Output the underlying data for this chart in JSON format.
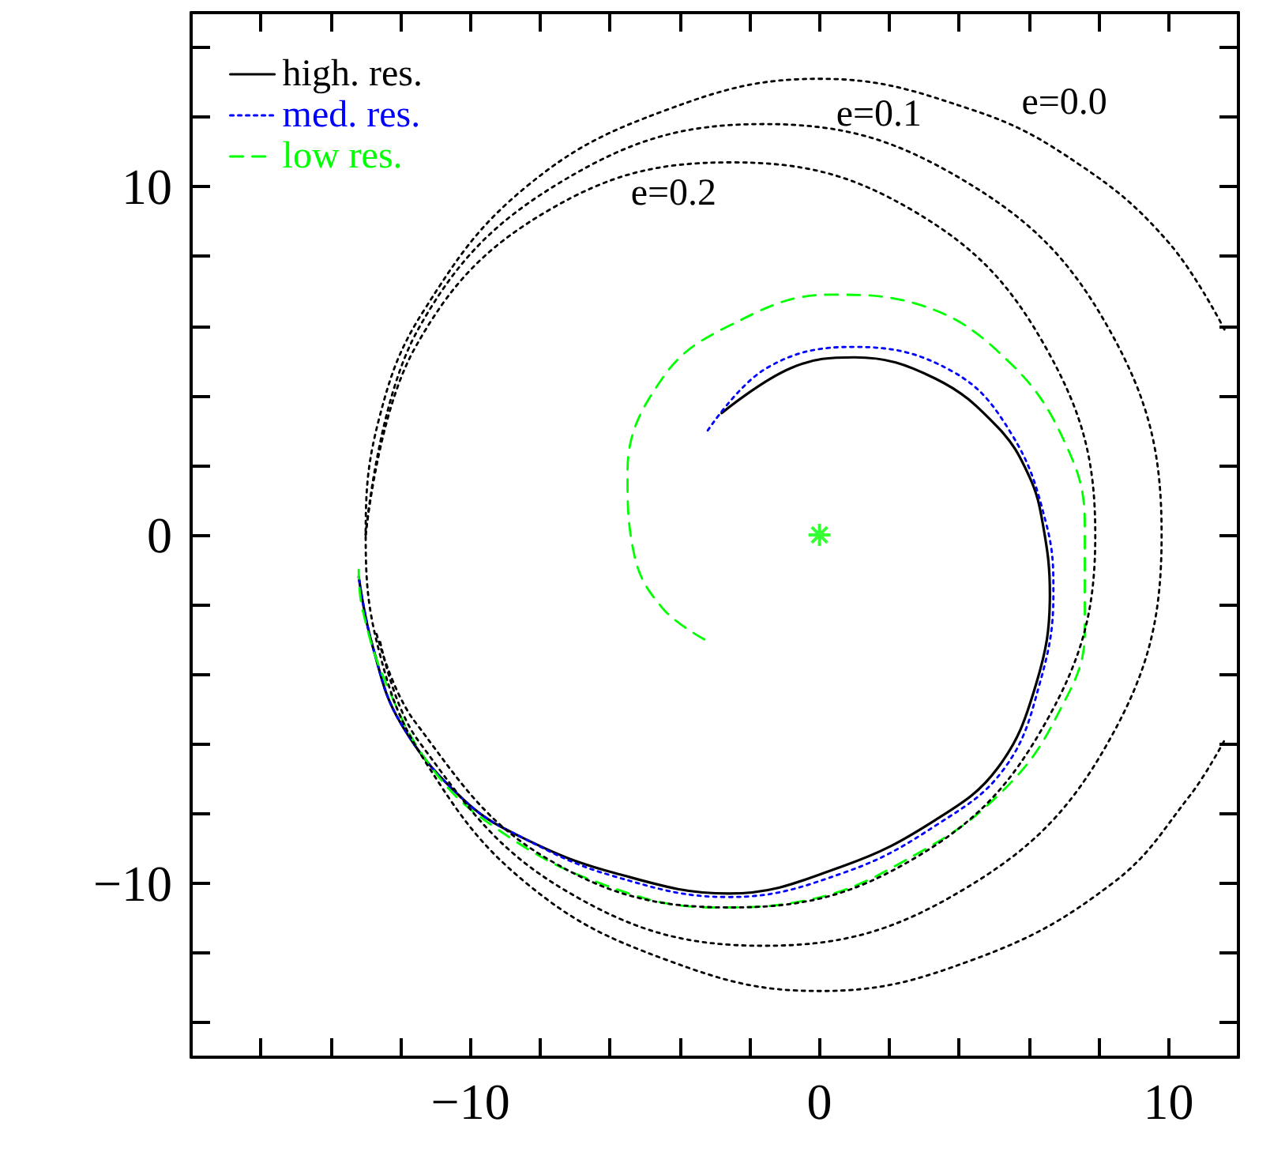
{
  "chart_data": {
    "type": "line",
    "xlim": [
      -18,
      12
    ],
    "ylim": [
      -15,
      15
    ],
    "xticks": [
      {
        "value": -16,
        "label": null
      },
      {
        "value": -14,
        "label": null
      },
      {
        "value": -12,
        "label": null
      },
      {
        "value": -10,
        "label": "−10"
      },
      {
        "value": -8,
        "label": null
      },
      {
        "value": -6,
        "label": null
      },
      {
        "value": -4,
        "label": null
      },
      {
        "value": -2,
        "label": null
      },
      0,
      {
        "value": 2,
        "label": null
      },
      {
        "value": 4,
        "label": null
      },
      {
        "value": 6,
        "label": null
      },
      {
        "value": 8,
        "label": null
      },
      10
    ],
    "yticks": [
      {
        "value": -14,
        "label": null
      },
      {
        "value": -12,
        "label": null
      },
      {
        "value": -10,
        "label": "−10"
      },
      {
        "value": -8,
        "label": null
      },
      {
        "value": -6,
        "label": null
      },
      {
        "value": -4,
        "label": null
      },
      {
        "value": -2,
        "label": null
      },
      0,
      {
        "value": 2,
        "label": null
      },
      {
        "value": 4,
        "label": null
      },
      {
        "value": 6,
        "label": null
      },
      {
        "value": 8,
        "label": null
      },
      10,
      {
        "value": 12,
        "label": null
      },
      {
        "value": 14,
        "label": null
      }
    ],
    "grid": false,
    "legend": "top left",
    "marker": "none",
    "series": [
      {
        "name": "high. res.",
        "color": "#000000",
        "line_style": "solid",
        "x": [
          -2.8,
          -0.8,
          1.0,
          3.3,
          5.1,
          6.0,
          6.4,
          6.6,
          6.2,
          5.1,
          3.3,
          0.7,
          -2.6,
          -5.9,
          -8.5,
          -10.2,
          -12.0,
          -12.8,
          -13.2
        ],
        "values": [
          3.5,
          4.8,
          5.1,
          4.5,
          3.1,
          1.7,
          0.3,
          -1.7,
          -4.3,
          -6.7,
          -8.2,
          -9.5,
          -10.3,
          -9.7,
          -8.7,
          -7.6,
          -5.4,
          -3.2,
          -1.2
        ]
      },
      {
        "name": "med. res.",
        "color": "#0000ff",
        "line_style": "dotted",
        "x": [
          -3.2,
          -1.5,
          1.0,
          3.8,
          5.5,
          6.5,
          6.7,
          6.3,
          5.3,
          3.4,
          0.7,
          -2.6,
          -5.9,
          -8.5,
          -10.2,
          -12.0,
          -12.8,
          -13.2
        ],
        "values": [
          3.0,
          4.8,
          5.4,
          4.7,
          2.9,
          0.3,
          -1.7,
          -4.3,
          -6.7,
          -8.3,
          -9.7,
          -10.4,
          -9.8,
          -8.7,
          -7.6,
          -5.4,
          -3.2,
          -1.2
        ]
      },
      {
        "name": "low res.",
        "color": "#00ff00",
        "line_style": "dashed",
        "x": [
          -3.3,
          -4.5,
          -5.3,
          -5.5,
          -4.5,
          -2.6,
          0.3,
          2.9,
          5.5,
          7.1,
          7.6,
          7.6,
          6.8,
          5.3,
          2.9,
          -0.4,
          -3.0,
          -6.3,
          -9.3,
          -11.1,
          -12.4,
          -13.1,
          -13.2
        ],
        "values": [
          -3.0,
          -2.1,
          -0.6,
          1.8,
          4.5,
          6.0,
          6.9,
          6.6,
          4.9,
          2.5,
          0.3,
          -2.8,
          -5.2,
          -7.3,
          -9.1,
          -10.5,
          -10.7,
          -10.0,
          -8.4,
          -6.7,
          -4.3,
          -2.1,
          -1.0
        ]
      },
      {
        "name": "e=0.0",
        "color": "#000000",
        "line_style": "dotted",
        "x": [
          11.6,
          10.0,
          7.5,
          4.4,
          0,
          -4.4,
          -8.4,
          -11.3,
          -12.6,
          -13.0,
          -12.6,
          -11.3,
          -8.4,
          -4.4,
          0,
          4.4,
          8.4,
          10.6,
          11.6
        ],
        "values": [
          5.9,
          8.4,
          10.6,
          12.2,
          13.1,
          12.2,
          10.0,
          6.5,
          3.4,
          0,
          -3.4,
          -6.5,
          -10.0,
          -12.2,
          -13.1,
          -12.2,
          -10.0,
          -7.5,
          -5.9
        ]
      },
      {
        "name": "e=0.1",
        "color": "#000000",
        "line_style": "dotted",
        "x": [
          -13.0,
          -11.5,
          -7.3,
          -1.6,
          4.1,
          8.3,
          9.8,
          8.3,
          4.1,
          -1.6,
          -7.3,
          -11.5,
          -12.6
        ],
        "values": [
          0,
          5.9,
          10.2,
          11.8,
          10.2,
          5.9,
          0,
          -5.9,
          -10.2,
          -11.8,
          -10.2,
          -5.9,
          -3.0
        ]
      },
      {
        "name": "e=0.2",
        "color": "#000000",
        "line_style": "dotted",
        "x": [
          -13.0,
          -11.6,
          -7.8,
          -2.55,
          2.7,
          6.5,
          7.9,
          6.5,
          2.7,
          -2.55,
          -7.8,
          -11.6,
          -12.7
        ],
        "values": [
          0,
          5.35,
          9.3,
          10.7,
          9.3,
          5.35,
          0,
          -5.35,
          -9.3,
          -10.7,
          -9.3,
          -5.35,
          -2.8
        ]
      },
      {
        "type": "scatter",
        "color": "#00ff00",
        "marker": "cross",
        "x": [
          0
        ],
        "values": [
          0
        ]
      }
    ]
  }
}
